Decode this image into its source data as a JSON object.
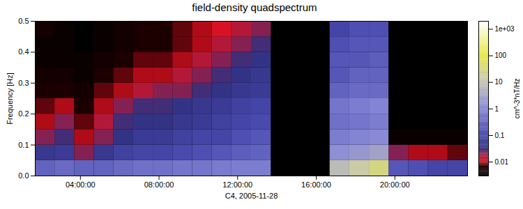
{
  "chart_data": {
    "type": "heatmap",
    "title": "field-density quadspectrum",
    "x_label": "C4, 2005-11-28",
    "y_label": "Frequency [Hz]",
    "xlim": [
      1.7,
      23.7
    ],
    "xticks": [
      {
        "value": 4,
        "label": "04:00:00"
      },
      {
        "value": 8,
        "label": "08:00:00"
      },
      {
        "value": 12,
        "label": "12:00:00"
      },
      {
        "value": 16,
        "label": "16:00:00"
      },
      {
        "value": 20,
        "label": "20:00:00"
      }
    ],
    "ylim": [
      0,
      0.5
    ],
    "yticks": [
      {
        "value": 0,
        "label": "0.0"
      },
      0.1,
      0.2,
      0.3,
      0.4,
      0.5
    ],
    "x_bins": [
      1.7,
      2.7,
      3.7,
      4.7,
      5.7,
      6.7,
      7.7,
      8.7,
      9.7,
      10.7,
      11.7,
      12.7,
      13.7,
      14.7,
      15.7,
      16.7,
      17.7,
      18.7,
      19.7,
      20.7,
      21.7,
      22.7,
      23.7
    ],
    "y_bins": [
      0,
      0.05,
      0.1,
      0.15,
      0.2,
      0.25,
      0.3,
      0.35,
      0.4,
      0.45,
      0.5
    ],
    "cells": [
      [
        0.3,
        0.4,
        0.3,
        0.3,
        0.4,
        0.5,
        0.5,
        0.6,
        0.6,
        0.7,
        0.8,
        0.8,
        null,
        null,
        null,
        8,
        15,
        30,
        0.2,
        0.15,
        0.1,
        0.1
      ],
      [
        0.05,
        0.06,
        0.02,
        0.05,
        0.08,
        0.1,
        0.1,
        0.12,
        0.15,
        0.2,
        0.25,
        0.3,
        null,
        null,
        null,
        1.5,
        2,
        3,
        0.02,
        0.01,
        0.01,
        0.008
      ],
      [
        0.02,
        0.03,
        0.01,
        0.02,
        0.04,
        0.06,
        0.06,
        0.08,
        0.1,
        0.1,
        0.15,
        0.2,
        null,
        null,
        null,
        0.8,
        1,
        1.2,
        0.004,
        0.004,
        0.004,
        0.004
      ],
      [
        0.01,
        0.02,
        0.008,
        0.015,
        0.03,
        0.04,
        0.04,
        0.05,
        0.06,
        0.08,
        0.1,
        0.12,
        null,
        null,
        null,
        0.5,
        0.6,
        0.8,
        0.003,
        0.003,
        0.003,
        0.003
      ],
      [
        0.008,
        0.01,
        0.006,
        0.01,
        0.02,
        0.03,
        0.03,
        0.04,
        0.05,
        0.06,
        0.08,
        0.1,
        null,
        null,
        null,
        0.6,
        0.8,
        1,
        0.003,
        0.003,
        0.003,
        0.003
      ],
      [
        0.006,
        0.006,
        0.005,
        0.008,
        0.01,
        0.015,
        0.02,
        0.02,
        0.03,
        0.04,
        0.05,
        0.06,
        null,
        null,
        null,
        0.3,
        0.4,
        0.4,
        0.003,
        0.003,
        0.003,
        0.003
      ],
      [
        0.005,
        0.005,
        0.004,
        0.006,
        0.008,
        0.01,
        0.01,
        0.015,
        0.02,
        0.03,
        0.04,
        0.05,
        null,
        null,
        null,
        0.2,
        0.3,
        0.3,
        0.003,
        0.003,
        0.003,
        0.003
      ],
      [
        0.004,
        0.004,
        0.004,
        0.005,
        0.006,
        0.008,
        0.008,
        0.01,
        0.015,
        0.02,
        0.03,
        0.04,
        null,
        null,
        null,
        0.2,
        0.2,
        0.25,
        0.003,
        0.003,
        0.003,
        0.003
      ],
      [
        0.004,
        0.004,
        0.003,
        0.004,
        0.005,
        0.006,
        0.006,
        0.008,
        0.01,
        0.015,
        0.02,
        0.03,
        null,
        null,
        null,
        0.15,
        0.2,
        0.2,
        0.003,
        0.003,
        0.003,
        0.003
      ],
      [
        0.005,
        0.004,
        0.003,
        0.004,
        0.005,
        0.006,
        0.006,
        0.008,
        0.01,
        0.012,
        0.015,
        0.02,
        null,
        null,
        null,
        0.1,
        0.15,
        0.15,
        0.003,
        0.003,
        0.003,
        0.003
      ]
    ],
    "colorbar": {
      "label": "cm^-3*nT/Hz",
      "range": [
        0.003,
        2000
      ],
      "ticks": [
        0.01,
        0.1,
        1,
        10,
        100,
        {
          "value": 1000,
          "label": "1e+03"
        }
      ],
      "log": true
    }
  }
}
